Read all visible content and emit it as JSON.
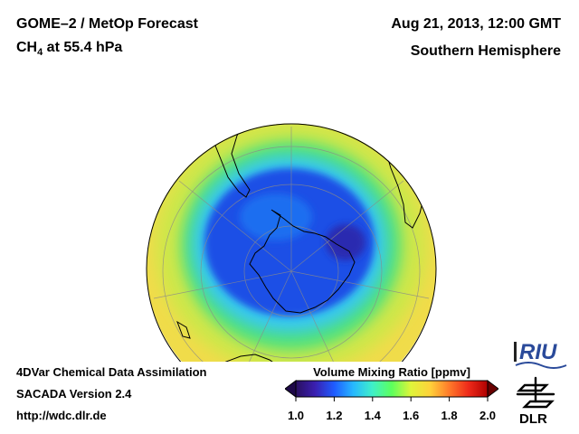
{
  "header": {
    "product": "GOME–2 / MetOp Forecast",
    "species_main": "CH",
    "species_sub": "4",
    "species_rest": " at 55.4 hPa",
    "datetime": "Aug 21, 2013, 12:00 GMT",
    "region": "Southern Hemisphere"
  },
  "footer": {
    "line1": "4DVar Chemical Data Assimilation",
    "line2": "SACADA Version 2.4",
    "line3": "http://wdc.dlr.de"
  },
  "colorbar": {
    "title": "Volume Mixing Ratio [ppmv]",
    "ticks": [
      "1.0",
      "1.2",
      "1.4",
      "1.6",
      "1.8",
      "2.0"
    ],
    "min": 1.0,
    "max": 2.0,
    "colors": [
      "#2a0f60",
      "#3a1fb0",
      "#1f5cff",
      "#27b8ff",
      "#3ff0c8",
      "#5cff5c",
      "#dff53a",
      "#ffd23a",
      "#ff7a2a",
      "#ee2a1a",
      "#b00000"
    ]
  },
  "logos": {
    "riu": "RIU",
    "dlr": "DLR"
  },
  "map_colors": {
    "background_field": "#f0dc4a",
    "low_vortex": "#1c4fe6",
    "vortex_core": "#2a2ab0",
    "coast": "#000000"
  }
}
